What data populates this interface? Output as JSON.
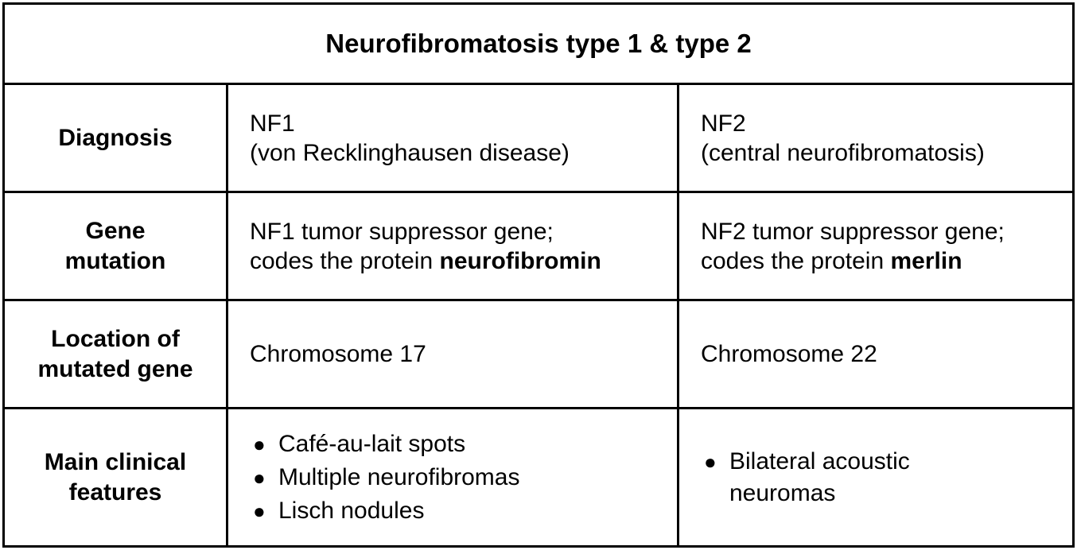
{
  "title": "Neurofibromatosis type 1 & type 2",
  "rows": {
    "diagnosis": {
      "header": "Diagnosis",
      "nf1_line1": "NF1",
      "nf1_line2": "(von Recklinghausen disease)",
      "nf2_line1": "NF2",
      "nf2_line2": "(central neurofibromatosis)"
    },
    "gene_mutation": {
      "header_line1": "Gene",
      "header_line2": "mutation",
      "nf1_line1": "NF1 tumor suppressor gene;",
      "nf1_line2_prefix": "codes the protein ",
      "nf1_protein": "neurofibromin",
      "nf2_line1": "NF2 tumor suppressor gene;",
      "nf2_line2_prefix": "codes the protein ",
      "nf2_protein": "merlin"
    },
    "location": {
      "header_line1": "Location of",
      "header_line2": "mutated gene",
      "nf1": "Chromosome 17",
      "nf2": "Chromosome 22"
    },
    "clinical": {
      "header_line1": "Main clinical",
      "header_line2": "features",
      "nf1_features": [
        "Café-au-lait spots",
        "Multiple neurofibromas",
        "Lisch nodules"
      ],
      "nf2_feature_line1": "Bilateral acoustic",
      "nf2_feature_line2": "neuromas"
    }
  }
}
